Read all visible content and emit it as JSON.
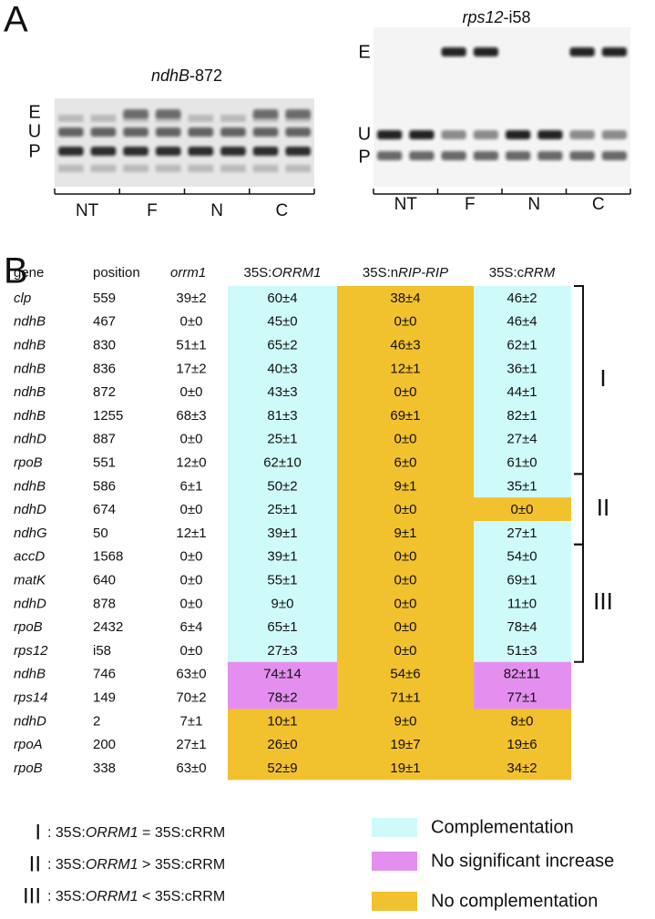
{
  "panel_a": {
    "label": "A",
    "gels": [
      {
        "title": [
          {
            "text": "ndhB",
            "italic": true
          },
          {
            "text": "-872"
          }
        ],
        "bands": [
          "E",
          "U",
          "P"
        ],
        "lanes": [
          "NT",
          "F",
          "N",
          "C"
        ]
      },
      {
        "title": [
          {
            "text": "rps12",
            "italic": true
          },
          {
            "text": "-i58"
          }
        ],
        "bands": [
          "E",
          "U",
          "P"
        ],
        "lanes": [
          "NT",
          "F",
          "N",
          "C"
        ]
      }
    ]
  },
  "panel_b": {
    "label": "B",
    "header": [
      [
        {
          "text": "gene"
        }
      ],
      [
        {
          "text": "position"
        }
      ],
      [
        {
          "text": "orrm1",
          "italic": true
        }
      ],
      [
        {
          "text": "35S:"
        },
        {
          "text": "ORRM1",
          "italic": true
        }
      ],
      [
        {
          "text": "35S:n"
        },
        {
          "text": "RIP-RIP",
          "italic": true
        }
      ],
      [
        {
          "text": "35S:c"
        },
        {
          "text": "RRM",
          "italic": true
        }
      ]
    ],
    "rows": [
      {
        "cells": [
          "clp",
          "559",
          "39±2",
          "60±4",
          "38±4",
          "46±2"
        ],
        "colors": [
          "#cffafa",
          "#f2c12e",
          "#cffafa"
        ]
      },
      {
        "cells": [
          "ndhB",
          "467",
          "0±0",
          "45±0",
          "0±0",
          "46±4"
        ],
        "colors": [
          "#cffafa",
          "#f2c12e",
          "#cffafa"
        ]
      },
      {
        "cells": [
          "ndhB",
          "830",
          "51±1",
          "65±2",
          "46±3",
          "62±1"
        ],
        "colors": [
          "#cffafa",
          "#f2c12e",
          "#cffafa"
        ]
      },
      {
        "cells": [
          "ndhB",
          "836",
          "17±2",
          "40±3",
          "12±1",
          "36±1"
        ],
        "colors": [
          "#cffafa",
          "#f2c12e",
          "#cffafa"
        ]
      },
      {
        "cells": [
          "ndhB",
          "872",
          "0±0",
          "43±3",
          "0±0",
          "44±1"
        ],
        "colors": [
          "#cffafa",
          "#f2c12e",
          "#cffafa"
        ]
      },
      {
        "cells": [
          "ndhB",
          "1255",
          "68±3",
          "81±3",
          "69±1",
          "82±1"
        ],
        "colors": [
          "#cffafa",
          "#f2c12e",
          "#cffafa"
        ]
      },
      {
        "cells": [
          "ndhD",
          "887",
          "0±0",
          "25±1",
          "0±0",
          "27±4"
        ],
        "colors": [
          "#cffafa",
          "#f2c12e",
          "#cffafa"
        ]
      },
      {
        "cells": [
          "rpoB",
          "551",
          "12±0",
          "62±10",
          "6±0",
          "61±0"
        ],
        "colors": [
          "#cffafa",
          "#f2c12e",
          "#cffafa"
        ]
      },
      {
        "cells": [
          "ndhB",
          "586",
          "6±1",
          "50±2",
          "9±1",
          "35±1"
        ],
        "colors": [
          "#cffafa",
          "#f2c12e",
          "#cffafa"
        ]
      },
      {
        "cells": [
          "ndhD",
          "674",
          "0±0",
          "25±1",
          "0±0",
          "0±0"
        ],
        "colors": [
          "#cffafa",
          "#f2c12e",
          "#f2c12e"
        ]
      },
      {
        "cells": [
          "ndhG",
          "50",
          "12±1",
          "39±1",
          "9±1",
          "27±1"
        ],
        "colors": [
          "#cffafa",
          "#f2c12e",
          "#cffafa"
        ]
      },
      {
        "cells": [
          "accD",
          "1568",
          "0±0",
          "39±1",
          "0±0",
          "54±0"
        ],
        "colors": [
          "#cffafa",
          "#f2c12e",
          "#cffafa"
        ]
      },
      {
        "cells": [
          "matK",
          "640",
          "0±0",
          "55±1",
          "0±0",
          "69±1"
        ],
        "colors": [
          "#cffafa",
          "#f2c12e",
          "#cffafa"
        ]
      },
      {
        "cells": [
          "ndhD",
          "878",
          "0±0",
          "9±0",
          "0±0",
          "11±0"
        ],
        "colors": [
          "#cffafa",
          "#f2c12e",
          "#cffafa"
        ]
      },
      {
        "cells": [
          "rpoB",
          "2432",
          "6±4",
          "65±1",
          "0±0",
          "78±4"
        ],
        "colors": [
          "#cffafa",
          "#f2c12e",
          "#cffafa"
        ]
      },
      {
        "cells": [
          "rps12",
          "i58",
          "0±0",
          "27±3",
          "0±0",
          "51±3"
        ],
        "colors": [
          "#cffafa",
          "#f2c12e",
          "#cffafa"
        ]
      },
      {
        "cells": [
          "ndhB",
          "746",
          "63±0",
          "74±14",
          "54±6",
          "82±11"
        ],
        "colors": [
          "#e48ff0",
          "#f2c12e",
          "#e48ff0"
        ]
      },
      {
        "cells": [
          "rps14",
          "149",
          "70±2",
          "78±2",
          "71±1",
          "77±1"
        ],
        "colors": [
          "#e48ff0",
          "#f2c12e",
          "#e48ff0"
        ]
      },
      {
        "cells": [
          "ndhD",
          "2",
          "7±1",
          "10±1",
          "9±0",
          "8±0"
        ],
        "colors": [
          "#f2c12e",
          "#f2c12e",
          "#f2c12e"
        ]
      },
      {
        "cells": [
          "rpoA",
          "200",
          "27±1",
          "26±0",
          "19±7",
          "19±6"
        ],
        "colors": [
          "#f2c12e",
          "#f2c12e",
          "#f2c12e"
        ]
      },
      {
        "cells": [
          "rpoB",
          "338",
          "63±0",
          "52±9",
          "19±1",
          "34±2"
        ],
        "colors": [
          "#f2c12e",
          "#f2c12e",
          "#f2c12e"
        ]
      }
    ],
    "groups": [
      {
        "label": "I",
        "count": 8
      },
      {
        "label": "II",
        "count": 3
      },
      {
        "label": "III",
        "count": 5
      }
    ],
    "notes": [
      {
        "key": "I",
        "text": [
          {
            "text": ": 35S:"
          },
          {
            "text": "ORRM1",
            "italic": true
          },
          {
            "text": " = 35S:cRRM"
          }
        ]
      },
      {
        "key": "II",
        "text": [
          {
            "text": ": 35S:"
          },
          {
            "text": "ORRM1",
            "italic": true
          },
          {
            "text": " > 35S:cRRM"
          }
        ]
      },
      {
        "key": "III",
        "text": [
          {
            "text": ": 35S:"
          },
          {
            "text": "ORRM1",
            "italic": true
          },
          {
            "text": " < 35S:cRRM"
          }
        ]
      }
    ],
    "legend": [
      {
        "label": "Complementation",
        "color": "#cffafa"
      },
      {
        "label": "No significant increase",
        "color": "#e48ff0"
      },
      {
        "label": "No complementation",
        "color": "#f2c12e"
      }
    ]
  }
}
